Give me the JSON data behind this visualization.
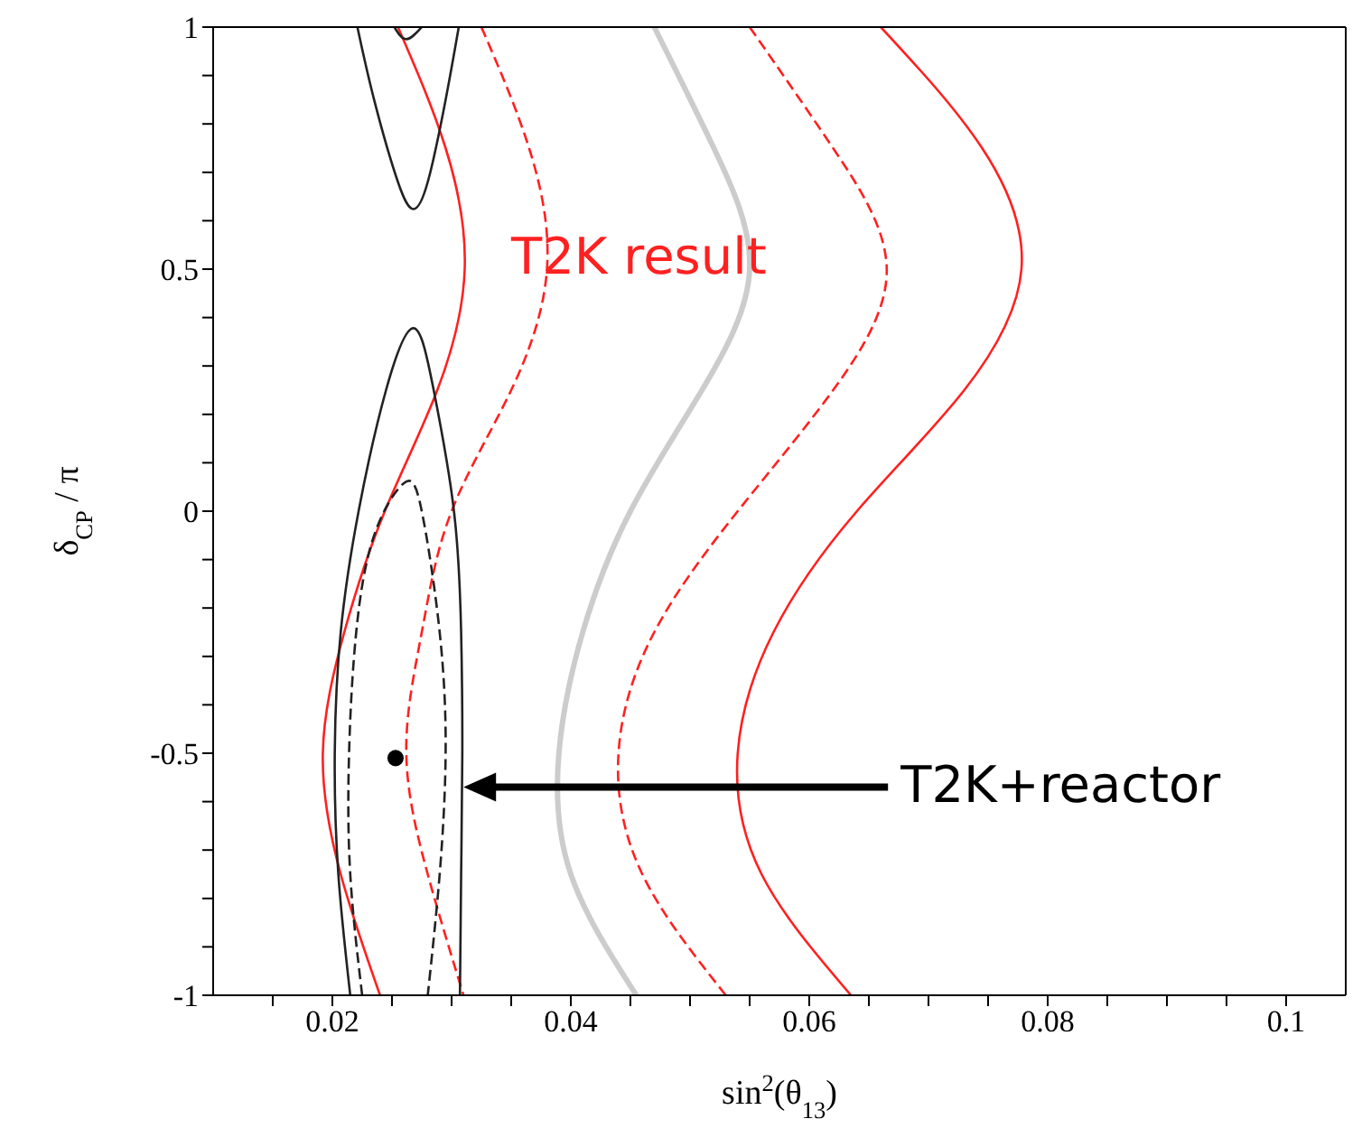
{
  "chart_data": {
    "type": "line",
    "xlabel": "sin$^{2}$(θ$_{13}$)",
    "ylabel": "δ$_{CP}$ / π",
    "xlim": [
      0.01,
      0.105
    ],
    "xticks": [
      {
        "value": 0.015,
        "label": null
      },
      0.02,
      {
        "value": 0.025,
        "label": null
      },
      {
        "value": 0.03,
        "label": null
      },
      {
        "value": 0.035,
        "label": null
      },
      0.04,
      {
        "value": 0.045,
        "label": null
      },
      {
        "value": 0.05,
        "label": null
      },
      {
        "value": 0.055,
        "label": null
      },
      0.06,
      {
        "value": 0.065,
        "label": null
      },
      {
        "value": 0.07,
        "label": null
      },
      {
        "value": 0.075,
        "label": null
      },
      0.08,
      {
        "value": 0.085,
        "label": null
      },
      {
        "value": 0.09,
        "label": null
      },
      {
        "value": 0.095,
        "label": null
      },
      0.1
    ],
    "ylim": [
      -1,
      1
    ],
    "yticks": [
      -1,
      {
        "value": -0.9,
        "label": null
      },
      {
        "value": -0.8,
        "label": null
      },
      {
        "value": -0.7,
        "label": null
      },
      {
        "value": -0.6,
        "label": null
      },
      -0.5,
      {
        "value": -0.4,
        "label": null
      },
      {
        "value": -0.3,
        "label": null
      },
      {
        "value": -0.2,
        "label": null
      },
      {
        "value": -0.1,
        "label": null
      },
      0,
      {
        "value": 0.1,
        "label": null
      },
      {
        "value": 0.2,
        "label": null
      },
      {
        "value": 0.3,
        "label": null
      },
      {
        "value": 0.4,
        "label": null
      },
      0.5,
      {
        "value": 0.6,
        "label": null
      },
      {
        "value": 0.7,
        "label": null
      },
      {
        "value": 0.8,
        "label": null
      },
      {
        "value": 0.9,
        "label": null
      },
      1
    ],
    "series": [
      {
        "color": "#ff2020",
        "line_style": "solid",
        "x": [
          0.066,
          0.0745,
          0.0778,
          0.073,
          0.064,
          0.057,
          0.054,
          0.056,
          0.0635
        ],
        "values": [
          1,
          0.75,
          0.5,
          0.25,
          0,
          -0.25,
          -0.5,
          -0.75,
          -1
        ]
      },
      {
        "color": "#ff2020",
        "line_style": "dashed",
        "x": [
          0.055,
          0.062,
          0.0665,
          0.062,
          0.054,
          0.047,
          0.044,
          0.046,
          0.053
        ],
        "values": [
          1,
          0.75,
          0.5,
          0.25,
          0,
          -0.25,
          -0.5,
          -0.75,
          -1
        ]
      },
      {
        "color": "#cccccc",
        "line_style": "solid",
        "x": [
          0.047,
          0.052,
          0.055,
          0.051,
          0.045,
          0.041,
          0.039,
          0.04,
          0.0455
        ],
        "values": [
          1,
          0.75,
          0.5,
          0.25,
          0,
          -0.25,
          -0.5,
          -0.75,
          -1
        ]
      },
      {
        "color": "#ff2020",
        "line_style": "dashed",
        "x": [
          0.0325,
          0.0365,
          0.038,
          0.035,
          0.03,
          0.0275,
          0.0262,
          0.028,
          0.031
        ],
        "values": [
          1,
          0.75,
          0.5,
          0.25,
          0,
          -0.25,
          -0.5,
          -0.75,
          -1
        ]
      },
      {
        "color": "#ff2020",
        "line_style": "solid",
        "x": [
          0.0255,
          0.0295,
          0.0311,
          0.0288,
          0.0244,
          0.021,
          0.0192,
          0.0207,
          0.024
        ],
        "values": [
          1,
          0.75,
          0.5,
          0.25,
          0,
          -0.25,
          -0.5,
          -0.75,
          -1
        ]
      },
      {
        "color": "#222222",
        "line_style": "solid",
        "x": [
          0.0221,
          0.0235,
          0.0255,
          0.0268,
          0.028,
          0.0295,
          0.0306
        ],
        "values": [
          1,
          0.85,
          0.68,
          0.624,
          0.68,
          0.85,
          1
        ]
      },
      {
        "color": "#222222",
        "line_style": "solid",
        "x": [
          0.0252,
          0.0262,
          0.0275
        ],
        "values": [
          1,
          0.975,
          1
        ]
      },
      {
        "color": "#222222",
        "line_style": "solid",
        "x": [
          0.0215,
          0.0205,
          0.0202,
          0.0207,
          0.0222,
          0.0245,
          0.0268,
          0.0285,
          0.0302,
          0.0308,
          0.0309,
          0.0308,
          0.0307
        ],
        "values": [
          -1,
          -0.75,
          -0.5,
          -0.25,
          0,
          0.25,
          0.378,
          0.25,
          0,
          -0.25,
          -0.5,
          -0.75,
          -1
        ]
      },
      {
        "color": "#222222",
        "line_style": "dashed",
        "x": [
          0.0225,
          0.0215,
          0.0214,
          0.022,
          0.0235,
          0.026,
          0.0275,
          0.029,
          0.0295,
          0.029,
          0.028
        ],
        "values": [
          -1,
          -0.75,
          -0.5,
          -0.25,
          -0.05,
          0.058,
          0,
          -0.25,
          -0.5,
          -0.75,
          -1
        ]
      },
      {
        "type": "scatter",
        "color": "#000000",
        "marker": "circle",
        "x": [
          0.0253
        ],
        "values": [
          -0.51
        ]
      }
    ],
    "annotations": [
      "T2K result",
      "T2K+reactor"
    ]
  }
}
